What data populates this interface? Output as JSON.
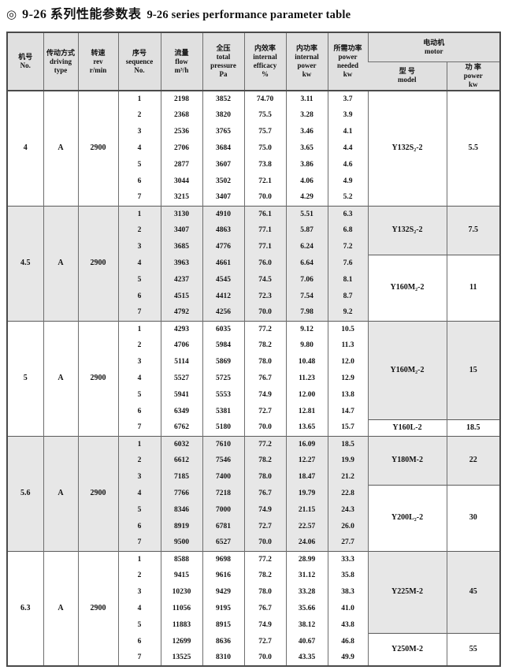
{
  "title": {
    "bullet_icon": "◎",
    "zh": "9-26 系列性能参数表",
    "en": "9-26 series performance parameter table"
  },
  "table": {
    "headers": {
      "no": "机号\nNo.",
      "driving": "传动方式\ndriving\ntype",
      "rev": "转速\nrev\nr/min",
      "sequence": "序号\nsequence\nNo.",
      "flow": "流量\nflow\nm³/h",
      "pressure": "全压\ntotal\npressure\nPa",
      "efficacy": "内效率\ninternal\nefficacy\n%",
      "internal_power": "内功率\ninternal\npower\nkw",
      "power_needed": "所需功率\npower\nneeded\nkw",
      "motor": "电动机\nmotor",
      "motor_model": "型 号\nmodel",
      "motor_power": "功 率\npower\nkw"
    },
    "groups": [
      {
        "no": "4",
        "driving": "A",
        "rev": "2900",
        "shaded": false,
        "rows": [
          {
            "seq": "1",
            "flow": "2198",
            "pressure": "3852",
            "efficacy": "74.70",
            "internal_power": "3.11",
            "power_needed": "3.7"
          },
          {
            "seq": "2",
            "flow": "2368",
            "pressure": "3820",
            "efficacy": "75.5",
            "internal_power": "3.28",
            "power_needed": "3.9"
          },
          {
            "seq": "3",
            "flow": "2536",
            "pressure": "3765",
            "efficacy": "75.7",
            "internal_power": "3.46",
            "power_needed": "4.1"
          },
          {
            "seq": "4",
            "flow": "2706",
            "pressure": "3684",
            "efficacy": "75.0",
            "internal_power": "3.65",
            "power_needed": "4.4"
          },
          {
            "seq": "5",
            "flow": "2877",
            "pressure": "3607",
            "efficacy": "73.8",
            "internal_power": "3.86",
            "power_needed": "4.6"
          },
          {
            "seq": "6",
            "flow": "3044",
            "pressure": "3502",
            "efficacy": "72.1",
            "internal_power": "4.06",
            "power_needed": "4.9"
          },
          {
            "seq": "7",
            "flow": "3215",
            "pressure": "3407",
            "efficacy": "70.0",
            "internal_power": "4.29",
            "power_needed": "5.2"
          }
        ],
        "motors": [
          {
            "model": "Y132S₂-2",
            "power": "5.5",
            "span": 7,
            "shaded": false
          }
        ]
      },
      {
        "no": "4.5",
        "driving": "A",
        "rev": "2900",
        "shaded": true,
        "rows": [
          {
            "seq": "1",
            "flow": "3130",
            "pressure": "4910",
            "efficacy": "76.1",
            "internal_power": "5.51",
            "power_needed": "6.3"
          },
          {
            "seq": "2",
            "flow": "3407",
            "pressure": "4863",
            "efficacy": "77.1",
            "internal_power": "5.87",
            "power_needed": "6.8"
          },
          {
            "seq": "3",
            "flow": "3685",
            "pressure": "4776",
            "efficacy": "77.1",
            "internal_power": "6.24",
            "power_needed": "7.2"
          },
          {
            "seq": "4",
            "flow": "3963",
            "pressure": "4661",
            "efficacy": "76.0",
            "internal_power": "6.64",
            "power_needed": "7.6"
          },
          {
            "seq": "5",
            "flow": "4237",
            "pressure": "4545",
            "efficacy": "74.5",
            "internal_power": "7.06",
            "power_needed": "8.1"
          },
          {
            "seq": "6",
            "flow": "4515",
            "pressure": "4412",
            "efficacy": "72.3",
            "internal_power": "7.54",
            "power_needed": "8.7"
          },
          {
            "seq": "7",
            "flow": "4792",
            "pressure": "4256",
            "efficacy": "70.0",
            "internal_power": "7.98",
            "power_needed": "9.2"
          }
        ],
        "motors": [
          {
            "model": "Y132S₂-2",
            "power": "7.5",
            "span": 3,
            "shaded": true
          },
          {
            "model": "Y160M₂-2",
            "power": "11",
            "span": 4,
            "shaded": false
          }
        ]
      },
      {
        "no": "5",
        "driving": "A",
        "rev": "2900",
        "shaded": false,
        "rows": [
          {
            "seq": "1",
            "flow": "4293",
            "pressure": "6035",
            "efficacy": "77.2",
            "internal_power": "9.12",
            "power_needed": "10.5"
          },
          {
            "seq": "2",
            "flow": "4706",
            "pressure": "5984",
            "efficacy": "78.2",
            "internal_power": "9.80",
            "power_needed": "11.3"
          },
          {
            "seq": "3",
            "flow": "5114",
            "pressure": "5869",
            "efficacy": "78.0",
            "internal_power": "10.48",
            "power_needed": "12.0"
          },
          {
            "seq": "4",
            "flow": "5527",
            "pressure": "5725",
            "efficacy": "76.7",
            "internal_power": "11.23",
            "power_needed": "12.9"
          },
          {
            "seq": "5",
            "flow": "5941",
            "pressure": "5553",
            "efficacy": "74.9",
            "internal_power": "12.00",
            "power_needed": "13.8"
          },
          {
            "seq": "6",
            "flow": "6349",
            "pressure": "5381",
            "efficacy": "72.7",
            "internal_power": "12.81",
            "power_needed": "14.7"
          },
          {
            "seq": "7",
            "flow": "6762",
            "pressure": "5180",
            "efficacy": "70.0",
            "internal_power": "13.65",
            "power_needed": "15.7"
          }
        ],
        "motors": [
          {
            "model": "Y160M₂-2",
            "power": "15",
            "span": 6,
            "shaded": true
          },
          {
            "model": "Y160L-2",
            "power": "18.5",
            "span": 1,
            "shaded": false
          }
        ]
      },
      {
        "no": "5.6",
        "driving": "A",
        "rev": "2900",
        "shaded": true,
        "rows": [
          {
            "seq": "1",
            "flow": "6032",
            "pressure": "7610",
            "efficacy": "77.2",
            "internal_power": "16.09",
            "power_needed": "18.5"
          },
          {
            "seq": "2",
            "flow": "6612",
            "pressure": "7546",
            "efficacy": "78.2",
            "internal_power": "12.27",
            "power_needed": "19.9"
          },
          {
            "seq": "3",
            "flow": "7185",
            "pressure": "7400",
            "efficacy": "78.0",
            "internal_power": "18.47",
            "power_needed": "21.2"
          },
          {
            "seq": "4",
            "flow": "7766",
            "pressure": "7218",
            "efficacy": "76.7",
            "internal_power": "19.79",
            "power_needed": "22.8"
          },
          {
            "seq": "5",
            "flow": "8346",
            "pressure": "7000",
            "efficacy": "74.9",
            "internal_power": "21.15",
            "power_needed": "24.3"
          },
          {
            "seq": "6",
            "flow": "8919",
            "pressure": "6781",
            "efficacy": "72.7",
            "internal_power": "22.57",
            "power_needed": "26.0"
          },
          {
            "seq": "7",
            "flow": "9500",
            "pressure": "6527",
            "efficacy": "70.0",
            "internal_power": "24.06",
            "power_needed": "27.7"
          }
        ],
        "motors": [
          {
            "model": "Y180M-2",
            "power": "22",
            "span": 3,
            "shaded": true
          },
          {
            "model": "Y200L₂-2",
            "power": "30",
            "span": 4,
            "shaded": false
          }
        ]
      },
      {
        "no": "6.3",
        "driving": "A",
        "rev": "2900",
        "shaded": false,
        "rows": [
          {
            "seq": "1",
            "flow": "8588",
            "pressure": "9698",
            "efficacy": "77.2",
            "internal_power": "28.99",
            "power_needed": "33.3"
          },
          {
            "seq": "2",
            "flow": "9415",
            "pressure": "9616",
            "efficacy": "78.2",
            "internal_power": "31.12",
            "power_needed": "35.8"
          },
          {
            "seq": "3",
            "flow": "10230",
            "pressure": "9429",
            "efficacy": "78.0",
            "internal_power": "33.28",
            "power_needed": "38.3"
          },
          {
            "seq": "4",
            "flow": "11056",
            "pressure": "9195",
            "efficacy": "76.7",
            "internal_power": "35.66",
            "power_needed": "41.0"
          },
          {
            "seq": "5",
            "flow": "11883",
            "pressure": "8915",
            "efficacy": "74.9",
            "internal_power": "38.12",
            "power_needed": "43.8"
          },
          {
            "seq": "6",
            "flow": "12699",
            "pressure": "8636",
            "efficacy": "72.7",
            "internal_power": "40.67",
            "power_needed": "46.8"
          },
          {
            "seq": "7",
            "flow": "13525",
            "pressure": "8310",
            "efficacy": "70.0",
            "internal_power": "43.35",
            "power_needed": "49.9"
          }
        ],
        "motors": [
          {
            "model": "Y225M-2",
            "power": "45",
            "span": 5,
            "shaded": true
          },
          {
            "model": "Y250M-2",
            "power": "55",
            "span": 2,
            "shaded": false
          }
        ]
      }
    ],
    "colors": {
      "band": "#e7e7e7",
      "header_bg": "#e0e0e0",
      "inner_border": "#6e6e6e",
      "outer_border": "#4a4a4a"
    }
  }
}
